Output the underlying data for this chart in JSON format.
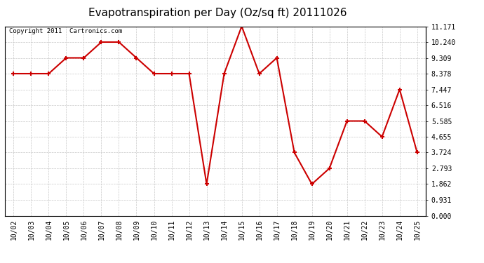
{
  "title": "Evapotranspiration per Day (Oz/sq ft) 20111026",
  "copyright": "Copyright 2011  Cartronics.com",
  "dates": [
    "10/02",
    "10/03",
    "10/04",
    "10/05",
    "10/06",
    "10/07",
    "10/08",
    "10/09",
    "10/10",
    "10/11",
    "10/12",
    "10/13",
    "10/14",
    "10/15",
    "10/16",
    "10/17",
    "10/18",
    "10/19",
    "10/20",
    "10/21",
    "10/22",
    "10/23",
    "10/24",
    "10/25"
  ],
  "values": [
    8.378,
    8.378,
    8.378,
    9.309,
    9.309,
    10.24,
    10.24,
    9.309,
    8.378,
    8.378,
    8.378,
    1.862,
    8.378,
    11.171,
    8.378,
    9.309,
    3.724,
    1.862,
    2.793,
    5.585,
    5.585,
    4.655,
    7.447,
    3.724
  ],
  "yticks": [
    0.0,
    0.931,
    1.862,
    2.793,
    3.724,
    4.655,
    5.585,
    6.516,
    7.447,
    8.378,
    9.309,
    10.24,
    11.171
  ],
  "ymin": 0.0,
  "ymax": 11.171,
  "line_color": "#cc0000",
  "marker": "+",
  "marker_size": 5,
  "line_width": 1.5,
  "bg_color": "#ffffff",
  "grid_color": "#c8c8c8",
  "title_fontsize": 11,
  "copyright_fontsize": 6.5,
  "tick_fontsize": 7,
  "fig_width": 6.9,
  "fig_height": 3.75,
  "dpi": 100
}
